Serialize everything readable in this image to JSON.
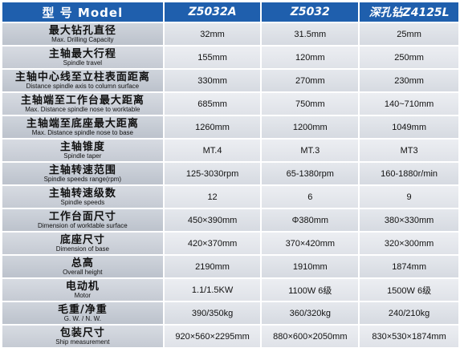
{
  "header": {
    "label": "型 号 Model",
    "models": [
      "Z5032A",
      "Z5032",
      "深孔钻Z4125L"
    ]
  },
  "rows": [
    {
      "zh": "最大钻孔直径",
      "en": "Max. Drilling Capacity",
      "values": [
        "32mm",
        "31.5mm",
        "25mm"
      ]
    },
    {
      "zh": "主轴最大行程",
      "en": "Spindle travel",
      "values": [
        "155mm",
        "120mm",
        "250mm"
      ]
    },
    {
      "zh": "主轴中心线至立柱表面距离",
      "en": "Distance spindle axis to column surface",
      "values": [
        "330mm",
        "270mm",
        "230mm"
      ]
    },
    {
      "zh": "主轴端至工作台最大距离",
      "en": "Max. Distance spindle nose to worktable",
      "values": [
        "685mm",
        "750mm",
        "140~710mm"
      ]
    },
    {
      "zh": "主轴端至底座最大距离",
      "en": "Max. Distance spindle nose to base",
      "values": [
        "1260mm",
        "1200mm",
        "1049mm"
      ]
    },
    {
      "zh": "主轴锥度",
      "en": "Spindle taper",
      "values": [
        "MT.4",
        "MT.3",
        "MT3"
      ]
    },
    {
      "zh": "主轴转速范围",
      "en": "Spindle speeds range(rpm)",
      "values": [
        "125-3030rpm",
        "65-1380rpm",
        "160-1880r/min"
      ]
    },
    {
      "zh": "主轴转速级数",
      "en": "Spindle speeds",
      "values": [
        "12",
        "6",
        "9"
      ]
    },
    {
      "zh": "工作台面尺寸",
      "en": "Dimension of worktable surface",
      "values": [
        "450×390mm",
        "Φ380mm",
        "380×330mm"
      ]
    },
    {
      "zh": "底座尺寸",
      "en": "Dimension of base",
      "values": [
        "420×370mm",
        "370×420mm",
        "320×300mm"
      ]
    },
    {
      "zh": "总高",
      "en": "Overall height",
      "values": [
        "2190mm",
        "1910mm",
        "1874mm"
      ]
    },
    {
      "zh": "电动机",
      "en": "Motor",
      "values": [
        "1.1/1.5KW",
        "1100W 6级",
        "1500W 6级"
      ]
    },
    {
      "zh": "毛重/净重",
      "en": "G. W. / N. W.",
      "values": [
        "390/350kg",
        "360/320kg",
        "240/210kg"
      ]
    },
    {
      "zh": "包装尺寸",
      "en": "Ship measurement",
      "values": [
        "920×560×2295mm",
        "880×600×2050mm",
        "830×530×1874mm"
      ]
    }
  ]
}
